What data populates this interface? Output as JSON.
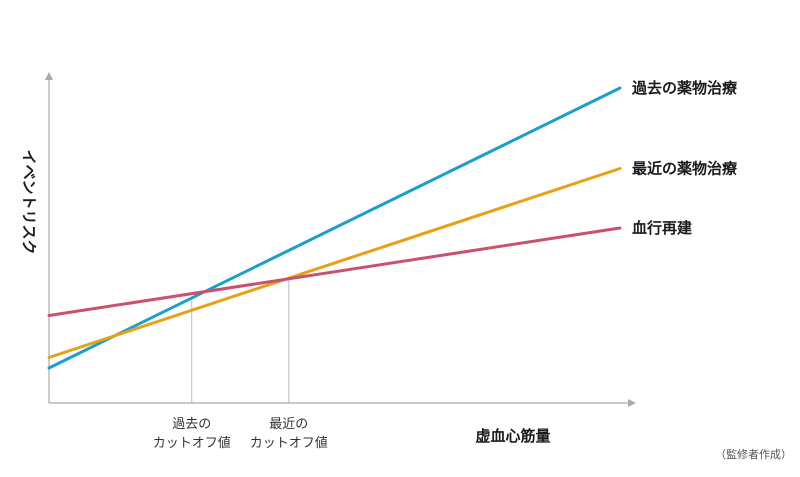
{
  "chart_data": {
    "type": "line",
    "title": "",
    "xlabel": "虚血心筋量",
    "ylabel": "イベントリスク",
    "x_range": [
      0,
      1
    ],
    "y_range": [
      0,
      1
    ],
    "grid": false,
    "legend": "inline-right",
    "series": [
      {
        "name": "過去の薬物治療",
        "color": "#1a9fcd",
        "x": [
          0,
          1
        ],
        "y": [
          0.1,
          0.9
        ]
      },
      {
        "name": "最近の薬物治療",
        "color": "#e8a014",
        "x": [
          0,
          1
        ],
        "y": [
          0.13,
          0.67
        ]
      },
      {
        "name": "血行再建",
        "color": "#cc4f6e",
        "x": [
          0,
          1
        ],
        "y": [
          0.25,
          0.5
        ]
      }
    ],
    "cutoffs": [
      {
        "label_lines": [
          "過去の",
          "カットオフ値"
        ],
        "x": 0.25
      },
      {
        "label_lines": [
          "最近の",
          "カットオフ値"
        ],
        "x": 0.42
      }
    ]
  },
  "source_note": "（監修者作成）"
}
